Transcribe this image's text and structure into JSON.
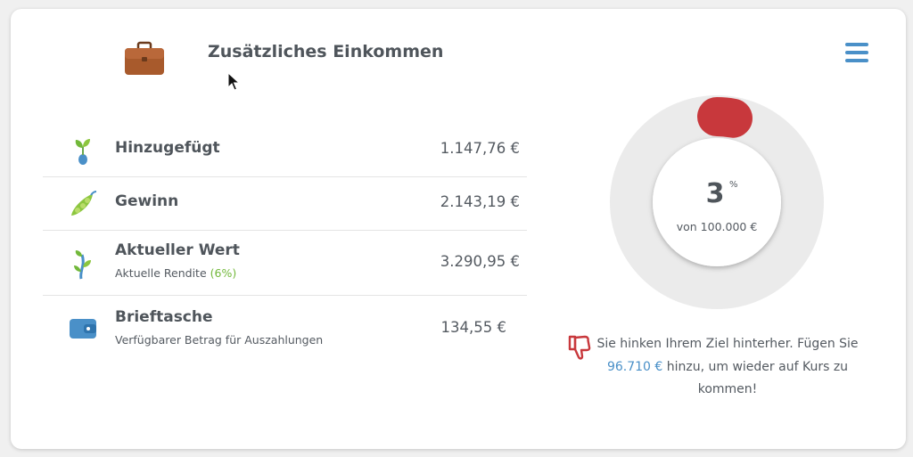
{
  "header": {
    "title": "Zusätzliches Einkommen",
    "icon": "briefcase-icon",
    "menu_icon": "hamburger-menu-icon"
  },
  "colors": {
    "accent_blue": "#4a90c8",
    "positive_green": "#72b83a",
    "alert_red": "#c8383c",
    "ring_gray": "#ebebeb"
  },
  "items": [
    {
      "icon": "sprout-icon",
      "label": "Hinzugefügt",
      "value": "1.147,76 €"
    },
    {
      "icon": "pea-pod-icon",
      "label": "Gewinn",
      "value": "2.143,19 €"
    },
    {
      "icon": "growing-plant-icon",
      "label": "Aktueller Wert",
      "sub_prefix": "Aktuelle Rendite",
      "sub_highlight": "(6%)",
      "value": "3.290,95 €"
    },
    {
      "icon": "wallet-icon",
      "label": "Brieftasche",
      "sub": "Verfügbarer Betrag für Auszahlungen",
      "value": "134,55 €"
    }
  ],
  "progress": {
    "percent": 3,
    "percent_label": "3",
    "percent_sign": "%",
    "goal_text": "von 100.000 €"
  },
  "warning": {
    "icon": "thumbs-down-icon",
    "text_before": "Sie hinken Ihrem Ziel hinterher. Fügen Sie ",
    "amount": "96.710 €",
    "text_after": " hinzu, um wieder auf Kurs zu kommen!"
  }
}
